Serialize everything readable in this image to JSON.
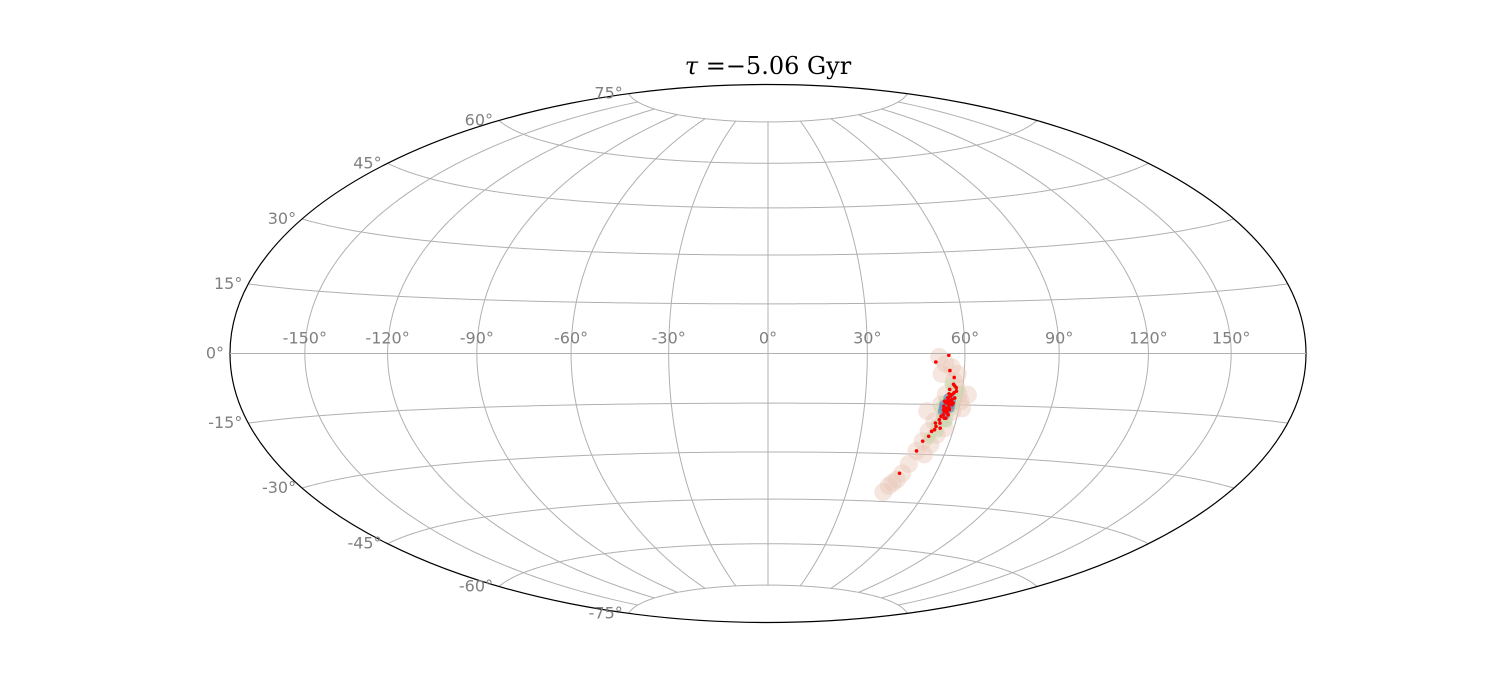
{
  "chart_data": {
    "type": "scatter",
    "projection": "hammer-aitoff",
    "title": {
      "symbol": "τ",
      "equals": " =",
      "value": "−5.06",
      "unit": " Gyr"
    },
    "xlabel": "",
    "ylabel": "",
    "xlim": [
      -180,
      180
    ],
    "ylim": [
      -90,
      90
    ],
    "grid": true,
    "colors": {
      "grid": "#b0b0b0",
      "frame": "#000000",
      "tick_label": "#808080",
      "points": "#ff0000",
      "density_outer": "#e8c8b8",
      "density_mid": "#c8d8b0",
      "density_inner": "#6f8fb0"
    },
    "x_ticks": [
      {
        "value": -150,
        "label": "-150°"
      },
      {
        "value": -120,
        "label": "-120°"
      },
      {
        "value": -90,
        "label": "-90°"
      },
      {
        "value": -60,
        "label": "-60°"
      },
      {
        "value": -30,
        "label": "-30°"
      },
      {
        "value": 0,
        "label": "0°"
      },
      {
        "value": 30,
        "label": "30°"
      },
      {
        "value": 60,
        "label": "60°"
      },
      {
        "value": 90,
        "label": "90°"
      },
      {
        "value": 120,
        "label": "120°"
      },
      {
        "value": 150,
        "label": "150°"
      }
    ],
    "y_ticks": [
      {
        "value": 75,
        "label": "75°"
      },
      {
        "value": 60,
        "label": "60°"
      },
      {
        "value": 45,
        "label": "45°"
      },
      {
        "value": 30,
        "label": "30°"
      },
      {
        "value": 15,
        "label": "15°"
      },
      {
        "value": 0,
        "label": "0°"
      },
      {
        "value": -15,
        "label": "-15°"
      },
      {
        "value": -30,
        "label": "-30°"
      },
      {
        "value": -45,
        "label": "-45°"
      },
      {
        "value": -60,
        "label": "-60°"
      },
      {
        "value": -75,
        "label": "-75°"
      }
    ],
    "density": [
      {
        "level": "outer",
        "points": [
          [
            52,
            -1
          ],
          [
            54,
            -3
          ],
          [
            56,
            -4
          ],
          [
            53,
            -6
          ],
          [
            57,
            -8
          ],
          [
            58,
            -10
          ],
          [
            59,
            -12
          ],
          [
            55,
            -12
          ],
          [
            60,
            -14
          ],
          [
            54,
            -15
          ],
          [
            58,
            -17
          ],
          [
            56,
            -19
          ],
          [
            53,
            -20
          ],
          [
            57,
            -22
          ],
          [
            52,
            -23
          ],
          [
            55,
            -24
          ],
          [
            51,
            -26
          ],
          [
            54,
            -27
          ],
          [
            50,
            -29
          ],
          [
            53,
            -30
          ],
          [
            49,
            -33
          ],
          [
            47,
            -38
          ],
          [
            45,
            -40
          ],
          [
            44,
            -42
          ],
          [
            46,
            -39
          ],
          [
            48,
            -36
          ],
          [
            61,
            -16
          ],
          [
            62,
            -12
          ],
          [
            50,
            -17
          ],
          [
            58,
            -6
          ]
        ]
      },
      {
        "level": "mid",
        "points": [
          [
            56,
            -9
          ],
          [
            57,
            -11
          ],
          [
            58,
            -13
          ],
          [
            55,
            -14
          ],
          [
            58,
            -15
          ],
          [
            57,
            -17
          ],
          [
            55,
            -18
          ],
          [
            56,
            -20
          ],
          [
            54,
            -21
          ],
          [
            55,
            -23
          ],
          [
            53,
            -25
          ],
          [
            59,
            -11
          ],
          [
            54,
            -16
          ],
          [
            57,
            -20
          ]
        ]
      },
      {
        "level": "inner",
        "points": [
          [
            56,
            -13
          ],
          [
            57,
            -14
          ],
          [
            55,
            -15
          ],
          [
            56,
            -16
          ],
          [
            57,
            -16
          ],
          [
            55,
            -17
          ],
          [
            56,
            -18
          ],
          [
            56,
            -14
          ],
          [
            55,
            -16
          ],
          [
            57,
            -15
          ]
        ]
      }
    ],
    "series": [
      {
        "points": [
          [
            55,
            -0.5
          ],
          [
            51,
            -2.5
          ],
          [
            55.5,
            -5
          ],
          [
            57,
            -7
          ],
          [
            57,
            -9
          ],
          [
            58,
            -10
          ],
          [
            56,
            -10.5
          ],
          [
            57.5,
            -11.5
          ],
          [
            56.5,
            -12.5
          ],
          [
            58,
            -13
          ],
          [
            56,
            -13.5
          ],
          [
            57,
            -14
          ],
          [
            55.5,
            -14.5
          ],
          [
            56.5,
            -15
          ],
          [
            57.5,
            -15
          ],
          [
            55,
            -15.5
          ],
          [
            56,
            -16
          ],
          [
            57,
            -16.5
          ],
          [
            55.5,
            -17
          ],
          [
            56.5,
            -17.5
          ],
          [
            57,
            -12
          ],
          [
            55.8,
            -13
          ],
          [
            57.2,
            -13.5
          ],
          [
            56.2,
            -14.2
          ],
          [
            55.2,
            -16.5
          ],
          [
            56.8,
            -16
          ],
          [
            55.4,
            -18
          ],
          [
            56,
            -19
          ],
          [
            54.5,
            -19.5
          ],
          [
            56.5,
            -19
          ],
          [
            53.5,
            -20.5
          ],
          [
            55,
            -20.5
          ],
          [
            54,
            -21.5
          ],
          [
            55.5,
            -22
          ],
          [
            53,
            -23
          ],
          [
            52.5,
            -24.5
          ],
          [
            51,
            -26
          ],
          [
            50,
            -29
          ],
          [
            47,
            -36
          ],
          [
            57.5,
            -9.5
          ],
          [
            58.2,
            -11
          ],
          [
            56,
            -11.8
          ],
          [
            55,
            -14
          ],
          [
            57.8,
            -14.5
          ],
          [
            56.2,
            -17
          ],
          [
            54.8,
            -18.5
          ],
          [
            53.8,
            -22.5
          ],
          [
            57,
            -18
          ]
        ]
      }
    ]
  }
}
